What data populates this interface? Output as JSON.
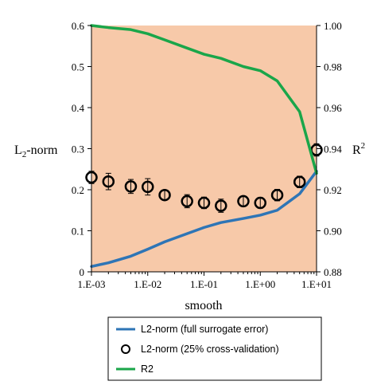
{
  "chart_data": {
    "type": "line",
    "xlabel": "smooth",
    "x_scale": "log",
    "x_ticks": [
      "1.E-03",
      "1.E-02",
      "1.E-01",
      "1.E+00",
      "1.E+01"
    ],
    "xlim": [
      0.001,
      10
    ],
    "ylabel_left": {
      "main": "L",
      "sub": "2",
      "rest": "-norm"
    },
    "ylabel_right": {
      "main": "R",
      "sup": "2"
    },
    "ylim_left": [
      0,
      0.6
    ],
    "ylim_right": [
      0.88,
      1.0
    ],
    "left_ticks": [
      "0",
      "0.1",
      "0.2",
      "0.3",
      "0.4",
      "0.5",
      "0.6"
    ],
    "right_ticks": [
      "0.88",
      "0.90",
      "0.92",
      "0.94",
      "0.96",
      "0.98",
      "1.00"
    ],
    "plot_background": "#f7c9a9",
    "series": [
      {
        "name": "L2-norm (full surrogate error)",
        "axis": "left",
        "style": "line",
        "color": "#2e75b6",
        "x": [
          0.001,
          0.002,
          0.005,
          0.01,
          0.02,
          0.05,
          0.1,
          0.2,
          0.5,
          1,
          2,
          5,
          10
        ],
        "values": [
          0.013,
          0.022,
          0.038,
          0.055,
          0.073,
          0.093,
          0.108,
          0.12,
          0.13,
          0.138,
          0.15,
          0.19,
          0.245
        ]
      },
      {
        "name": "L2-norm (25% cross-validation)",
        "axis": "left",
        "style": "markers",
        "color": "#000000",
        "x": [
          0.001,
          0.002,
          0.005,
          0.01,
          0.02,
          0.05,
          0.1,
          0.2,
          0.5,
          1,
          2,
          5,
          10
        ],
        "values": [
          0.23,
          0.22,
          0.208,
          0.207,
          0.187,
          0.172,
          0.168,
          0.161,
          0.172,
          0.168,
          0.187,
          0.219,
          0.297
        ],
        "errors": [
          0.015,
          0.02,
          0.017,
          0.02,
          0.012,
          0.016,
          0.014,
          0.016,
          0.012,
          0.013,
          0.014,
          0.014,
          0.015
        ]
      },
      {
        "name": "R2",
        "axis": "right",
        "style": "line",
        "color": "#1aa64a",
        "x": [
          0.001,
          0.002,
          0.005,
          0.01,
          0.02,
          0.05,
          0.1,
          0.2,
          0.5,
          1,
          2,
          5,
          10
        ],
        "values": [
          1.0,
          0.999,
          0.998,
          0.996,
          0.993,
          0.989,
          0.986,
          0.984,
          0.98,
          0.978,
          0.973,
          0.958,
          0.928
        ]
      }
    ],
    "legend_position": "bottom"
  }
}
